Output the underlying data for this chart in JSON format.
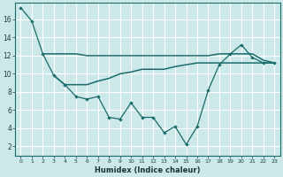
{
  "xlabel": "Humidex (Indice chaleur)",
  "bg_color": "#cce8e8",
  "grid_color": "#b0d8d8",
  "line_color": "#1a6b6b",
  "x_ticks": [
    0,
    1,
    2,
    3,
    4,
    5,
    6,
    7,
    8,
    9,
    10,
    11,
    12,
    13,
    14,
    15,
    16,
    17,
    18,
    19,
    20,
    21,
    22,
    23
  ],
  "y_ticks": [
    2,
    4,
    6,
    8,
    10,
    12,
    14,
    16
  ],
  "xlim": [
    -0.5,
    23.5
  ],
  "ylim": [
    1.0,
    17.8
  ],
  "line1_x": [
    0,
    1,
    2,
    3,
    4,
    5,
    6,
    7,
    8,
    9,
    10,
    11,
    12,
    13,
    14,
    15,
    16,
    17,
    18,
    19,
    20,
    21,
    22,
    23
  ],
  "line1_y": [
    17.3,
    15.8,
    12.2,
    9.8,
    8.8,
    7.5,
    7.2,
    7.5,
    5.2,
    5.0,
    6.8,
    5.2,
    5.2,
    3.5,
    4.2,
    2.2,
    4.2,
    8.2,
    11.0,
    12.2,
    13.2,
    11.8,
    11.2,
    11.2
  ],
  "line2_x": [
    2,
    3,
    4,
    5,
    6,
    7,
    8,
    9,
    10,
    11,
    12,
    13,
    14,
    15,
    16,
    17,
    18,
    19,
    20,
    21,
    22,
    23
  ],
  "line2_y": [
    12.2,
    12.2,
    12.2,
    12.2,
    12.0,
    12.0,
    12.0,
    12.0,
    12.0,
    12.0,
    12.0,
    12.0,
    12.0,
    12.0,
    12.0,
    12.0,
    12.2,
    12.2,
    12.2,
    12.2,
    11.5,
    11.2
  ],
  "line3_x": [
    3,
    4,
    5,
    6,
    7,
    8,
    9,
    10,
    11,
    12,
    13,
    14,
    15,
    16,
    17,
    18,
    19,
    20,
    21,
    22,
    23
  ],
  "line3_y": [
    9.8,
    8.8,
    8.8,
    8.8,
    9.2,
    9.5,
    10.0,
    10.2,
    10.5,
    10.5,
    10.5,
    10.8,
    11.0,
    11.2,
    11.2,
    11.2,
    11.2,
    11.2,
    11.2,
    11.2,
    11.2
  ]
}
